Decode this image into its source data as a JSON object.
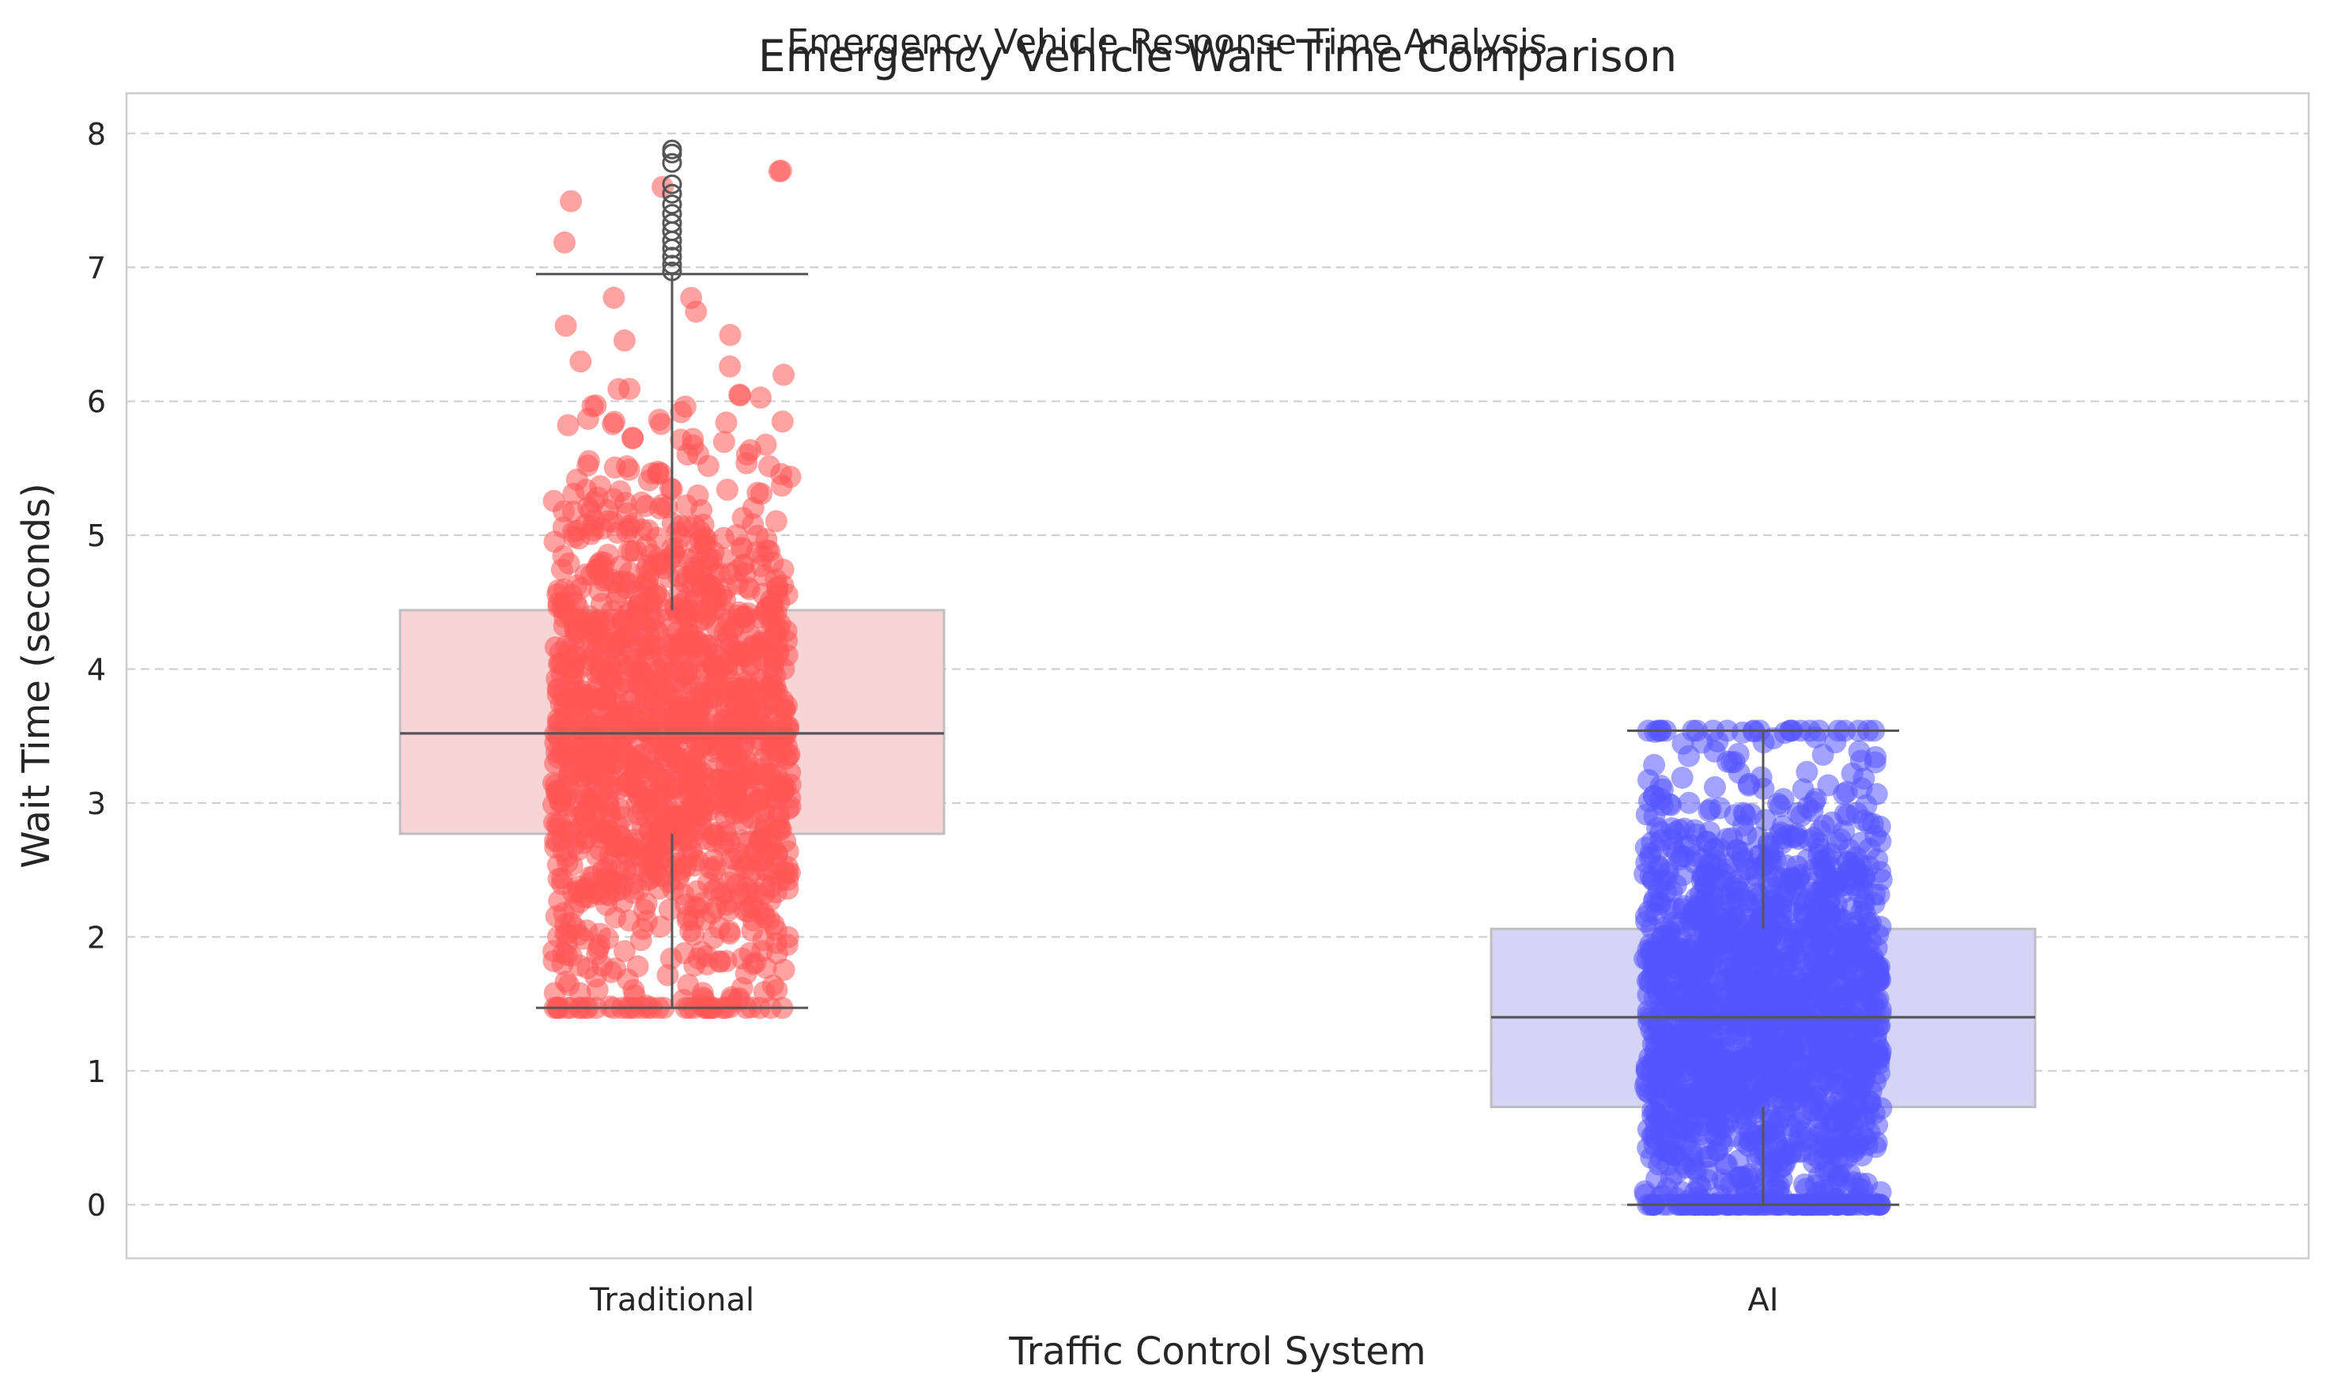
{
  "figure": {
    "suptitle": "Emergency Vehicle Response Time Analysis"
  },
  "chart_data": {
    "type": "box",
    "title": "Emergency Vehicle Wait Time Comparison",
    "xlabel": "Traffic Control System",
    "ylabel": "Wait Time (seconds)",
    "ylim": [
      -0.4,
      8.3
    ],
    "yticks": [
      0,
      1,
      2,
      3,
      4,
      5,
      6,
      7,
      8
    ],
    "grid": "y-dashed",
    "categories": [
      "Traditional",
      "AI"
    ],
    "boxes": [
      {
        "category": "Traditional",
        "whisker_low": 1.47,
        "q1": 2.77,
        "median": 3.52,
        "q3": 4.44,
        "whisker_high": 6.95,
        "outliers": [
          6.97,
          7.02,
          7.08,
          7.14,
          7.2,
          7.27,
          7.33,
          7.4,
          7.47,
          7.55,
          7.62,
          7.78,
          7.85,
          7.88
        ],
        "color": "#ff5555",
        "box_fill": "#f7d4d5",
        "box_edge": "#bfbfbf",
        "jitter_points": {
          "count": 1500,
          "min": 1.47,
          "max": 7.88,
          "center": 3.52,
          "spread": 1.05
        }
      },
      {
        "category": "AI",
        "whisker_low": 0.0,
        "q1": 0.73,
        "median": 1.4,
        "q3": 2.06,
        "whisker_high": 3.54,
        "outliers": [],
        "color": "#5555ff",
        "box_fill": "#d4d4f7",
        "box_edge": "#bfbfbf",
        "jitter_points": {
          "count": 1800,
          "min": 0.0,
          "max": 3.54,
          "center": 1.4,
          "spread": 0.9
        }
      }
    ]
  }
}
